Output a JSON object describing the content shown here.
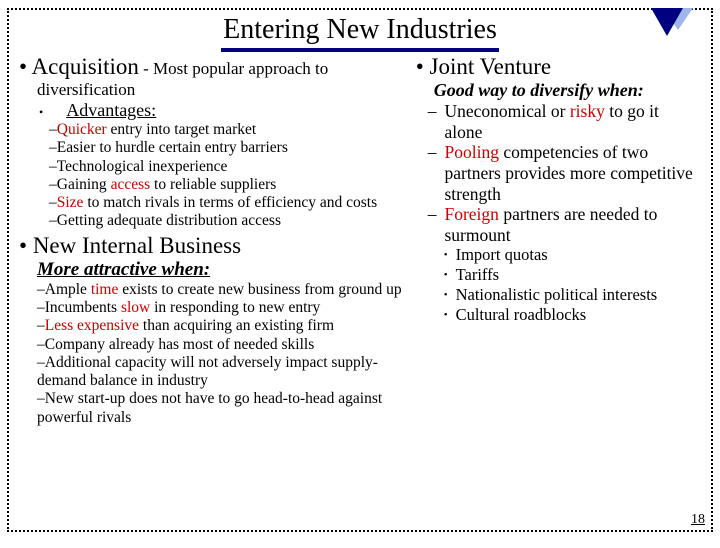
{
  "colors": {
    "accent": "#cc0000",
    "underline": "#000080",
    "triFront": "#000080",
    "triBack": "#9fb6e8"
  },
  "title": "Entering New Industries",
  "pageNumber": "18",
  "left": {
    "acq": {
      "head": "Acquisition",
      "tail": " - Most popular approach to",
      "line2": "diversification"
    },
    "advLabel": "Advantages:",
    "advItems": [
      {
        "pre": "",
        "hl": "Quicker",
        "post": " entry into target market"
      },
      {
        "pre": "Easier to hurdle certain entry barriers",
        "hl": "",
        "post": ""
      },
      {
        "pre": "Technological inexperience",
        "hl": "",
        "post": ""
      },
      {
        "pre": "Gaining ",
        "hl": "access",
        "post": " to reliable suppliers"
      },
      {
        "pre": "",
        "hl": "Size",
        "post": " to match rivals in terms of efficiency and costs"
      },
      {
        "pre": "Getting adequate distribution access",
        "hl": "",
        "post": ""
      }
    ],
    "nib": "New Internal Business",
    "more": "More attractive when:",
    "nibItems": [
      {
        "pre": "Ample ",
        "hl": "time",
        "post": " exists to create new business from ground up"
      },
      {
        "pre": "Incumbents ",
        "hl": "slow",
        "post": " in responding to new entry"
      },
      {
        "pre": "",
        "hl": "Less expensive",
        "post": " than acquiring an existing firm"
      },
      {
        "pre": "Company already has most of needed skills",
        "hl": "",
        "post": ""
      },
      {
        "pre": "Additional capacity will not adversely impact supply-demand balance in industry",
        "hl": "",
        "post": ""
      },
      {
        "pre": "New start-up does not have to go head-to-head against powerful rivals",
        "hl": "",
        "post": ""
      }
    ]
  },
  "right": {
    "jv": "Joint Venture",
    "good": "Good way to diversify when:",
    "items": [
      {
        "pre": "Uneconomical or ",
        "hl": "risky",
        "post": " to go it alone"
      },
      {
        "pre": "",
        "hl": "Pooling",
        "post": " competencies of two partners provides more competitive strength"
      },
      {
        "pre": "",
        "hl": "Foreign",
        "post": " partners are needed to surmount"
      }
    ],
    "sub": [
      "Import quotas",
      "Tariffs",
      "Nationalistic political interests",
      "Cultural roadblocks"
    ]
  }
}
